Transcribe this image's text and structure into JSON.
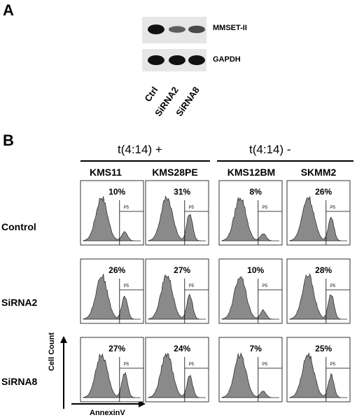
{
  "panel_a": {
    "letter": "A",
    "blots": [
      {
        "label": "MMSET-II",
        "intensities": [
          1.0,
          0.45,
          0.6
        ]
      },
      {
        "label": "GAPDH",
        "intensities": [
          1.0,
          1.0,
          1.0
        ]
      }
    ],
    "lanes": [
      "Ctrl",
      "SiRNA2",
      "SiRNA8"
    ]
  },
  "panel_b": {
    "letter": "B",
    "groups": [
      "t(4:14) +",
      "t(4:14) -"
    ],
    "cell_lines": [
      "KMS11",
      "KMS28PE",
      "KMS12BM",
      "SKMM2"
    ],
    "rows": [
      "Control",
      "SiRNA2",
      "SiRNA8"
    ],
    "gate_label": "P5",
    "y_axis_label": "Cell Count",
    "x_axis_label": "AnnexinV",
    "percentages": [
      [
        "10%",
        "31%",
        "8%",
        "26%"
      ],
      [
        "26%",
        "27%",
        "10%",
        "28%"
      ],
      [
        "27%",
        "24%",
        "7%",
        "25%"
      ]
    ]
  }
}
